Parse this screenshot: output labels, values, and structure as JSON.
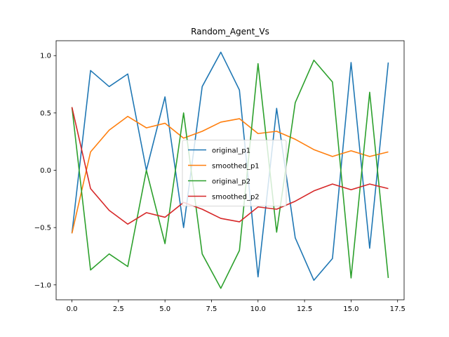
{
  "chart_data": {
    "type": "line",
    "title": "Random_Agent_Vs",
    "xlabel": "",
    "ylabel": "",
    "xlim": [
      -0.85,
      17.85
    ],
    "ylim": [
      -1.13,
      1.13
    ],
    "xticks": [
      0.0,
      2.5,
      5.0,
      7.5,
      10.0,
      12.5,
      15.0,
      17.5
    ],
    "xtick_labels": [
      "0.0",
      "2.5",
      "5.0",
      "7.5",
      "10.0",
      "12.5",
      "15.0",
      "17.5"
    ],
    "yticks": [
      -1.0,
      -0.5,
      0.0,
      0.5,
      1.0
    ],
    "ytick_labels": [
      "−1.0",
      "−0.5",
      "0.0",
      "0.5",
      "1.0"
    ],
    "grid": false,
    "legend_position": "center",
    "x": [
      0,
      1,
      2,
      3,
      4,
      5,
      6,
      7,
      8,
      9,
      10,
      11,
      12,
      13,
      14,
      15,
      16,
      17
    ],
    "series": [
      {
        "name": "original_p1",
        "color": "#1f77b4",
        "values": [
          -0.55,
          0.87,
          0.73,
          0.84,
          0.0,
          0.64,
          -0.5,
          0.73,
          1.03,
          0.7,
          -0.93,
          0.54,
          -0.59,
          -0.96,
          -0.77,
          0.94,
          -0.68,
          0.94
        ]
      },
      {
        "name": "smoothed_p1",
        "color": "#ff7f0e",
        "values": [
          -0.55,
          0.16,
          0.35,
          0.47,
          0.37,
          0.41,
          0.28,
          0.34,
          0.42,
          0.45,
          0.32,
          0.34,
          0.27,
          0.18,
          0.12,
          0.17,
          0.12,
          0.16
        ]
      },
      {
        "name": "original_p2",
        "color": "#2ca02c",
        "values": [
          0.55,
          -0.87,
          -0.73,
          -0.84,
          0.0,
          -0.64,
          0.5,
          -0.73,
          -1.03,
          -0.7,
          0.93,
          -0.54,
          0.59,
          0.96,
          0.77,
          -0.94,
          0.68,
          -0.94
        ]
      },
      {
        "name": "smoothed_p2",
        "color": "#d62728",
        "values": [
          0.55,
          -0.16,
          -0.35,
          -0.47,
          -0.37,
          -0.41,
          -0.28,
          -0.34,
          -0.42,
          -0.45,
          -0.32,
          -0.34,
          -0.27,
          -0.18,
          -0.12,
          -0.17,
          -0.12,
          -0.16
        ]
      }
    ]
  }
}
